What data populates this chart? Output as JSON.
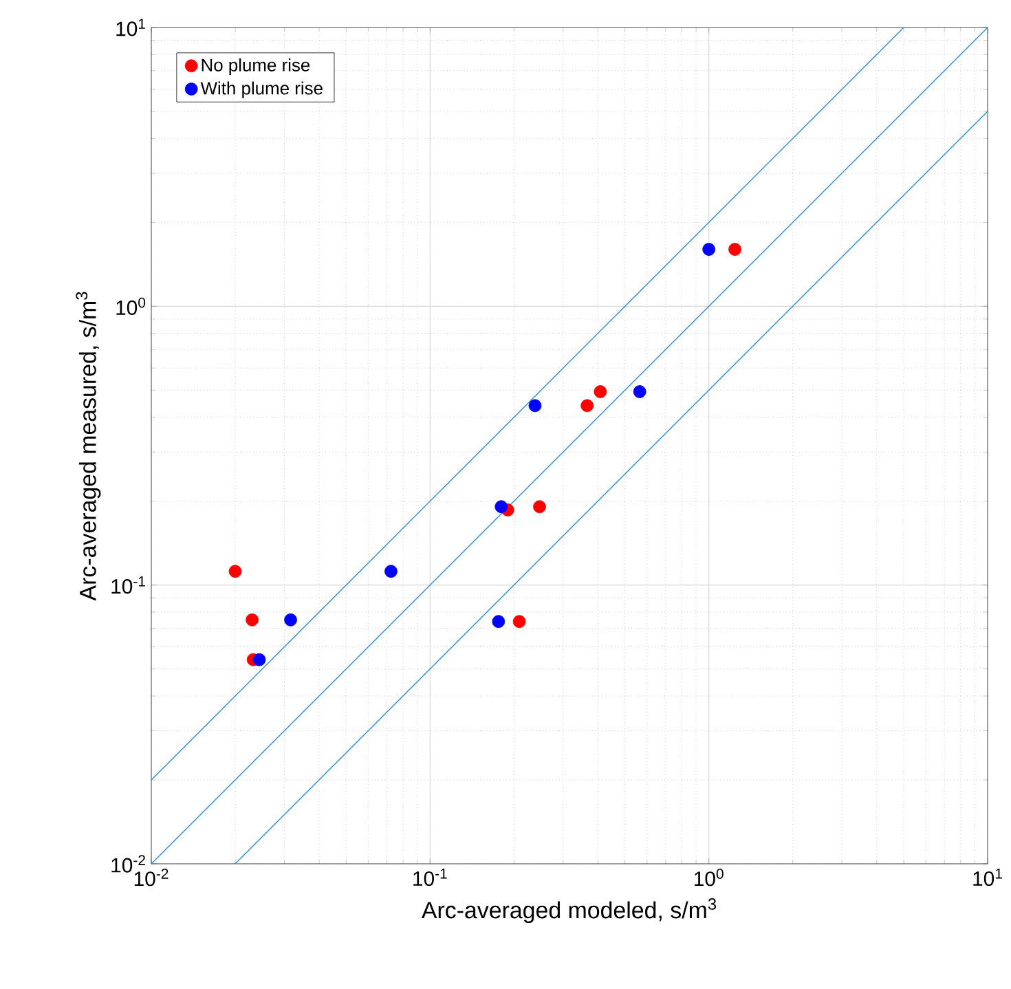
{
  "chart_data": {
    "type": "scatter",
    "xlabel": "Arc-averaged modeled, s/m$^{3}$",
    "ylabel": "Arc-averaged measured, s/m$^{3}$",
    "log": "xy",
    "grid": true,
    "legend": "top left",
    "marker": "circle",
    "xlim": [
      0.01,
      10
    ],
    "ylim": [
      0.01,
      10
    ],
    "xticks": [
      {
        "value": 0.01,
        "label": "10$^{-2}$"
      },
      {
        "value": 0.1,
        "label": "10$^{-1}$"
      },
      {
        "value": 1,
        "label": "10$^{0}$"
      },
      {
        "value": 10,
        "label": "10$^{1}$"
      }
    ],
    "yticks": [
      {
        "value": 0.01,
        "label": "10$^{-2}$"
      },
      {
        "value": 0.1,
        "label": "10$^{-1}$"
      },
      {
        "value": 1,
        "label": "10$^{0}$"
      },
      {
        "value": 10,
        "label": "10$^{1}$"
      }
    ],
    "series": [
      {
        "name": "No plume rise",
        "color": "#ff0000",
        "x": [
          0.02,
          0.023,
          0.0232,
          0.19,
          0.247,
          0.366,
          0.408,
          0.209,
          1.24
        ],
        "values": [
          0.112,
          0.075,
          0.054,
          0.186,
          0.191,
          0.44,
          0.494,
          0.074,
          1.6
        ]
      },
      {
        "name": "With plume rise",
        "color": "#0000ff",
        "x": [
          0.0316,
          0.0244,
          0.0724,
          0.18,
          0.176,
          0.238,
          0.565,
          1.0
        ],
        "values": [
          0.075,
          0.054,
          0.112,
          0.191,
          0.074,
          0.44,
          0.494,
          1.6
        ]
      },
      {
        "type": "line",
        "color": "#2f8fd0",
        "line_style": "solid",
        "marker": "none",
        "x": [
          0.01,
          5
        ],
        "values": [
          0.02,
          10
        ]
      },
      {
        "type": "line",
        "color": "#2f8fd0",
        "line_style": "solid",
        "marker": "none",
        "x": [
          0.01,
          10
        ],
        "values": [
          0.01,
          10
        ]
      },
      {
        "type": "line",
        "color": "#2f8fd0",
        "line_style": "solid",
        "marker": "none",
        "x": [
          0.02,
          10
        ],
        "values": [
          0.01,
          5
        ]
      }
    ]
  }
}
